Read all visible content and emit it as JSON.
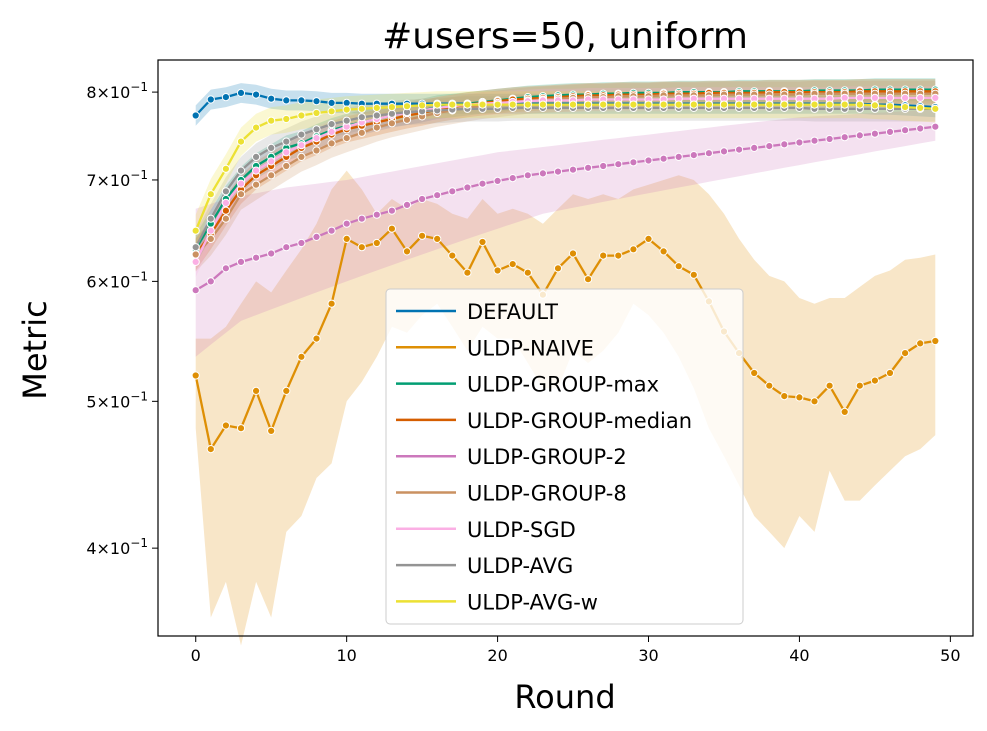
{
  "chart_data": {
    "type": "line",
    "title": "#users=50, uniform",
    "xlabel": "Round",
    "ylabel": "Metric",
    "xlim": [
      -2.5,
      51.5
    ],
    "ylim": [
      0.35,
      0.84
    ],
    "yscale": "log",
    "xticks": [
      0,
      10,
      20,
      30,
      40,
      50
    ],
    "xtick_labels": [
      "0",
      "10",
      "20",
      "30",
      "40",
      "50"
    ],
    "yticks": [
      0.4,
      0.5,
      0.6,
      0.7,
      0.8
    ],
    "ytick_labels": [
      {
        "mant": "4",
        "times": "×",
        "base": "10",
        "exp": "−1"
      },
      {
        "mant": "5",
        "times": "×",
        "base": "10",
        "exp": "−1"
      },
      {
        "mant": "6",
        "times": "×",
        "base": "10",
        "exp": "−1"
      },
      {
        "mant": "7",
        "times": "×",
        "base": "10",
        "exp": "−1"
      },
      {
        "mant": "8",
        "times": "×",
        "base": "10",
        "exp": "−1"
      }
    ],
    "grid": false,
    "legend_position": "center-bottom",
    "series": [
      {
        "name": "DEFAULT",
        "color": "#0173b2",
        "values": [
          0.772,
          0.791,
          0.794,
          0.799,
          0.797,
          0.792,
          0.79,
          0.79,
          0.789,
          0.787,
          0.787,
          0.786,
          0.786,
          0.786,
          0.786,
          0.786,
          0.786,
          0.786,
          0.786,
          0.786,
          0.786,
          0.786,
          0.786,
          0.786,
          0.786,
          0.786,
          0.786,
          0.786,
          0.786,
          0.786,
          0.786,
          0.786,
          0.786,
          0.786,
          0.786,
          0.786,
          0.786,
          0.786,
          0.786,
          0.786,
          0.786,
          0.786,
          0.786,
          0.786,
          0.786,
          0.785,
          0.785,
          0.784,
          0.783,
          0.782
        ],
        "band": 0.012
      },
      {
        "name": "ULDP-NAIVE",
        "color": "#de8f05",
        "values": [
          0.52,
          0.465,
          0.482,
          0.48,
          0.508,
          0.478,
          0.508,
          0.535,
          0.55,
          0.58,
          0.64,
          0.632,
          0.636,
          0.65,
          0.628,
          0.643,
          0.64,
          0.624,
          0.608,
          0.637,
          0.61,
          0.616,
          0.608,
          0.588,
          0.612,
          0.626,
          0.602,
          0.624,
          0.624,
          0.63,
          0.64,
          0.628,
          0.614,
          0.606,
          0.582,
          0.556,
          0.538,
          0.522,
          0.512,
          0.504,
          0.503,
          0.5,
          0.512,
          0.492,
          0.512,
          0.516,
          0.522,
          0.538,
          0.546,
          0.548
        ],
        "lower": [
          0.48,
          0.36,
          0.38,
          0.345,
          0.38,
          0.36,
          0.41,
          0.42,
          0.445,
          0.455,
          0.5,
          0.515,
          0.535,
          0.56,
          0.555,
          0.57,
          0.58,
          0.56,
          0.54,
          0.56,
          0.55,
          0.55,
          0.53,
          0.51,
          0.51,
          0.54,
          0.53,
          0.54,
          0.555,
          0.58,
          0.57,
          0.555,
          0.535,
          0.51,
          0.48,
          0.46,
          0.44,
          0.42,
          0.41,
          0.4,
          0.42,
          0.41,
          0.45,
          0.43,
          0.43,
          0.44,
          0.45,
          0.46,
          0.465,
          0.475
        ],
        "upper": [
          0.55,
          0.55,
          0.56,
          0.58,
          0.6,
          0.59,
          0.61,
          0.63,
          0.655,
          0.69,
          0.71,
          0.69,
          0.665,
          0.68,
          0.67,
          0.68,
          0.675,
          0.665,
          0.66,
          0.68,
          0.665,
          0.67,
          0.665,
          0.655,
          0.67,
          0.685,
          0.68,
          0.685,
          0.68,
          0.69,
          0.695,
          0.7,
          0.705,
          0.7,
          0.685,
          0.665,
          0.64,
          0.62,
          0.605,
          0.6,
          0.585,
          0.58,
          0.585,
          0.585,
          0.595,
          0.605,
          0.61,
          0.62,
          0.622,
          0.625
        ]
      },
      {
        "name": "ULDP-GROUP-max",
        "color": "#029e73",
        "values": [
          0.63,
          0.655,
          0.68,
          0.7,
          0.715,
          0.725,
          0.735,
          0.74,
          0.748,
          0.755,
          0.76,
          0.764,
          0.768,
          0.772,
          0.775,
          0.778,
          0.782,
          0.784,
          0.786,
          0.788,
          0.79,
          0.792,
          0.794,
          0.795,
          0.796,
          0.797,
          0.797,
          0.798,
          0.798,
          0.799,
          0.799,
          0.799,
          0.8,
          0.8,
          0.8,
          0.8,
          0.801,
          0.801,
          0.801,
          0.801,
          0.801,
          0.802,
          0.802,
          0.802,
          0.802,
          0.803,
          0.803,
          0.803,
          0.803,
          0.803
        ],
        "band": 0.014
      },
      {
        "name": "ULDP-GROUP-median",
        "color": "#d55e00",
        "values": [
          0.625,
          0.645,
          0.668,
          0.69,
          0.705,
          0.715,
          0.725,
          0.735,
          0.742,
          0.75,
          0.756,
          0.76,
          0.764,
          0.768,
          0.772,
          0.775,
          0.779,
          0.782,
          0.785,
          0.787,
          0.789,
          0.791,
          0.792,
          0.793,
          0.794,
          0.795,
          0.796,
          0.796,
          0.797,
          0.797,
          0.797,
          0.798,
          0.798,
          0.798,
          0.799,
          0.799,
          0.799,
          0.799,
          0.8,
          0.8,
          0.8,
          0.8,
          0.8,
          0.8,
          0.801,
          0.801,
          0.801,
          0.801,
          0.801,
          0.801
        ],
        "band": 0.015
      },
      {
        "name": "ULDP-GROUP-2",
        "color": "#cc78bc",
        "values": [
          0.592,
          0.6,
          0.612,
          0.618,
          0.622,
          0.626,
          0.632,
          0.636,
          0.642,
          0.648,
          0.655,
          0.66,
          0.664,
          0.668,
          0.674,
          0.68,
          0.684,
          0.688,
          0.692,
          0.696,
          0.699,
          0.702,
          0.705,
          0.707,
          0.709,
          0.711,
          0.713,
          0.715,
          0.717,
          0.719,
          0.721,
          0.723,
          0.725,
          0.727,
          0.729,
          0.731,
          0.733,
          0.735,
          0.737,
          0.739,
          0.741,
          0.743,
          0.745,
          0.747,
          0.749,
          0.751,
          0.753,
          0.755,
          0.757,
          0.759
        ],
        "lower": [
          0.535,
          0.545,
          0.555,
          0.565,
          0.57,
          0.575,
          0.58,
          0.585,
          0.59,
          0.595,
          0.6,
          0.605,
          0.61,
          0.615,
          0.62,
          0.625,
          0.63,
          0.635,
          0.64,
          0.645,
          0.65,
          0.655,
          0.66,
          0.665,
          0.668,
          0.671,
          0.674,
          0.677,
          0.68,
          0.683,
          0.686,
          0.689,
          0.692,
          0.695,
          0.698,
          0.701,
          0.704,
          0.707,
          0.71,
          0.713,
          0.716,
          0.719,
          0.722,
          0.725,
          0.728,
          0.731,
          0.734,
          0.737,
          0.74,
          0.743
        ],
        "upper": [
          0.67,
          0.675,
          0.68,
          0.683,
          0.686,
          0.689,
          0.692,
          0.694,
          0.696,
          0.698,
          0.7,
          0.703,
          0.706,
          0.709,
          0.712,
          0.715,
          0.718,
          0.721,
          0.724,
          0.727,
          0.73,
          0.732,
          0.734,
          0.736,
          0.738,
          0.74,
          0.742,
          0.744,
          0.746,
          0.748,
          0.75,
          0.752,
          0.754,
          0.756,
          0.758,
          0.76,
          0.762,
          0.764,
          0.766,
          0.768,
          0.77,
          0.771,
          0.772,
          0.773,
          0.774,
          0.775,
          0.776,
          0.777,
          0.778,
          0.779
        ]
      },
      {
        "name": "ULDP-GROUP-8",
        "color": "#ca9161",
        "values": [
          0.625,
          0.64,
          0.66,
          0.685,
          0.695,
          0.705,
          0.715,
          0.725,
          0.732,
          0.74,
          0.746,
          0.752,
          0.758,
          0.763,
          0.767,
          0.771,
          0.775,
          0.778,
          0.781,
          0.784,
          0.786,
          0.788,
          0.79,
          0.791,
          0.792,
          0.793,
          0.794,
          0.794,
          0.795,
          0.795,
          0.795,
          0.796,
          0.796,
          0.796,
          0.796,
          0.797,
          0.797,
          0.797,
          0.797,
          0.797,
          0.797,
          0.798,
          0.798,
          0.798,
          0.798,
          0.798,
          0.798,
          0.798,
          0.798,
          0.798
        ],
        "band": 0.016
      },
      {
        "name": "ULDP-SGD",
        "color": "#fbafe4",
        "values": [
          0.618,
          0.648,
          0.676,
          0.696,
          0.71,
          0.72,
          0.73,
          0.738,
          0.746,
          0.753,
          0.759,
          0.764,
          0.768,
          0.772,
          0.775,
          0.778,
          0.781,
          0.783,
          0.785,
          0.786,
          0.787,
          0.788,
          0.789,
          0.79,
          0.79,
          0.79,
          0.791,
          0.791,
          0.791,
          0.791,
          0.791,
          0.791,
          0.792,
          0.792,
          0.792,
          0.792,
          0.792,
          0.792,
          0.792,
          0.792,
          0.792,
          0.792,
          0.792,
          0.793,
          0.793,
          0.793,
          0.793,
          0.793,
          0.793,
          0.793
        ],
        "band": 0.014
      },
      {
        "name": "ULDP-AVG",
        "color": "#949494",
        "values": [
          0.632,
          0.66,
          0.688,
          0.71,
          0.725,
          0.735,
          0.742,
          0.75,
          0.756,
          0.762,
          0.766,
          0.77,
          0.772,
          0.774,
          0.776,
          0.777,
          0.778,
          0.779,
          0.78,
          0.78,
          0.78,
          0.781,
          0.781,
          0.781,
          0.781,
          0.781,
          0.781,
          0.781,
          0.781,
          0.781,
          0.781,
          0.781,
          0.781,
          0.781,
          0.781,
          0.781,
          0.781,
          0.781,
          0.781,
          0.781,
          0.781,
          0.78,
          0.78,
          0.78,
          0.78,
          0.78,
          0.78,
          0.78,
          0.78,
          0.78
        ],
        "band": 0.015
      },
      {
        "name": "ULDP-AVG-w",
        "color": "#ece133",
        "values": [
          0.648,
          0.685,
          0.712,
          0.742,
          0.758,
          0.766,
          0.768,
          0.772,
          0.775,
          0.777,
          0.779,
          0.78,
          0.781,
          0.782,
          0.783,
          0.784,
          0.785,
          0.785,
          0.785,
          0.785,
          0.785,
          0.785,
          0.785,
          0.785,
          0.785,
          0.785,
          0.785,
          0.785,
          0.785,
          0.785,
          0.785,
          0.785,
          0.785,
          0.785,
          0.785,
          0.785,
          0.785,
          0.785,
          0.785,
          0.785,
          0.785,
          0.785,
          0.785,
          0.785,
          0.785,
          0.784,
          0.783,
          0.782,
          0.781,
          0.78
        ],
        "band": 0.016
      }
    ]
  }
}
